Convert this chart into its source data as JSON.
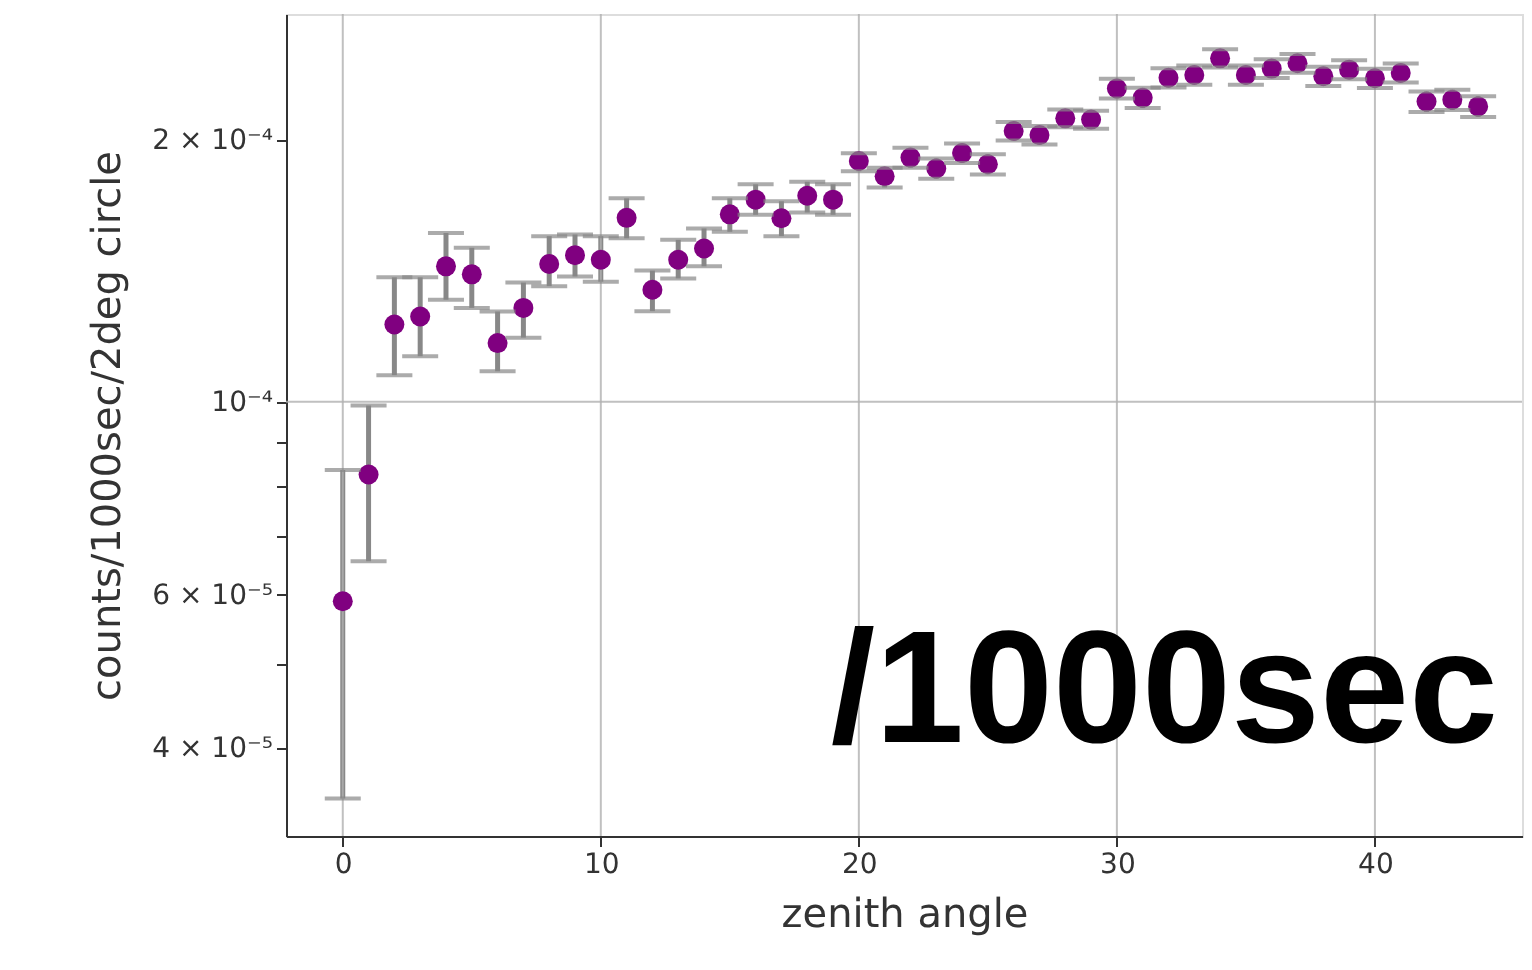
{
  "chart_data": {
    "type": "scatter",
    "xlabel": "zenith angle",
    "ylabel": "counts/1000sec/2deg circle",
    "annotations": [
      "/1000sec"
    ],
    "x": [
      0,
      1,
      2,
      3,
      4,
      5,
      6,
      7,
      8,
      9,
      10,
      11,
      12,
      13,
      14,
      15,
      16,
      17,
      18,
      19,
      20,
      21,
      22,
      23,
      24,
      25,
      26,
      27,
      28,
      29,
      30,
      31,
      32,
      33,
      34,
      35,
      36,
      37,
      38,
      39,
      40,
      41,
      42,
      43,
      44
    ],
    "series": [
      {
        "color": "#800080",
        "values": [
          5.9e-05,
          8.25e-05,
          0.0001227,
          0.0001253,
          0.0001431,
          0.0001401,
          0.0001168,
          0.0001282,
          0.000144,
          0.0001474,
          0.0001456,
          0.0001627,
          0.0001345,
          0.0001456,
          0.00015,
          0.0001642,
          0.0001707,
          0.0001625,
          0.0001725,
          0.0001707,
          0.0001891,
          0.0001816,
          0.0001908,
          0.0001854,
          0.0001931,
          0.0001875,
          0.0002047,
          0.0002025,
          0.0002117,
          0.000211,
          0.0002291,
          0.0002235,
          0.0002357,
          0.0002374,
          0.0002481,
          0.0002374,
          0.0002415,
          0.0002449,
          0.0002366,
          0.0002408,
          0.0002354,
          0.0002387,
          0.0002213,
          0.0002224,
          0.0002185
        ],
        "errors": [
          [
            3.5e-05,
            8.35e-05
          ],
          [
            6.56e-05,
            9.9e-05
          ],
          [
            0.0001073,
            0.000139
          ],
          [
            0.0001128,
            0.000139
          ],
          [
            0.000131,
            0.0001563
          ],
          [
            0.0001282,
            0.0001503
          ],
          [
            0.0001084,
            0.000127
          ],
          [
            0.0001185,
            0.0001371
          ],
          [
            0.0001358,
            0.000155
          ],
          [
            0.0001393,
            0.0001557
          ],
          [
            0.0001374,
            0.000155
          ],
          [
            0.0001541,
            0.0001713
          ],
          [
            0.0001271,
            0.0001415
          ],
          [
            0.0001386,
            0.0001535
          ],
          [
            0.0001431,
            0.0001582
          ],
          [
            0.0001568,
            0.0001713
          ],
          [
            0.000164,
            0.0001778
          ],
          [
            0.000155,
            0.00017
          ],
          [
            0.000165,
            0.000179
          ],
          [
            0.000164,
            0.0001778
          ],
          [
            0.000184,
            0.000193
          ],
          [
            0.0001763,
            0.0001858
          ],
          [
            0.0001858,
            0.0001958
          ],
          5e-06,
          5e-06,
          5e-06,
          5e-06,
          5e-06,
          5e-06,
          5e-06,
          6e-06,
          6e-06,
          6e-06,
          6e-06,
          6e-06,
          6e-06,
          6e-06,
          6e-06,
          6e-06,
          6e-06,
          6e-06,
          6e-06,
          6e-06,
          6e-06,
          6e-06
        ]
      }
    ],
    "log": "y",
    "xlim": [
      -2.2,
      45.7
    ],
    "ylim": [
      3.17e-05,
      0.000279
    ],
    "xticks": [
      0,
      10,
      20,
      30,
      40
    ],
    "yticks": [
      {
        "value": 4e-05,
        "label": "4 × 10⁻⁵"
      },
      {
        "value": 5e-05,
        "label": null
      },
      {
        "value": 6e-05,
        "label": "6 × 10⁻⁵"
      },
      {
        "value": 7e-05,
        "label": null
      },
      {
        "value": 8e-05,
        "label": null
      },
      {
        "value": 9e-05,
        "label": null
      },
      {
        "value": 0.0001,
        "label": "10⁻⁴"
      },
      {
        "value": 0.0002,
        "label": "2 × 10⁻⁴"
      }
    ],
    "grid": true,
    "marker": "circle"
  }
}
